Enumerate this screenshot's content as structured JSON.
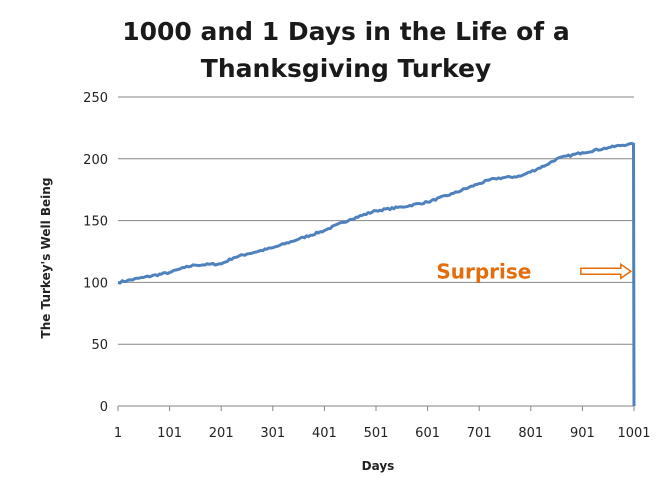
{
  "chart_data": {
    "type": "line",
    "title": [
      "1000 and 1 Days in the Life of a",
      "Thanksgiving Turkey"
    ],
    "xlabel": "Days",
    "ylabel": "The Turkey's Well Being",
    "xlim": [
      1,
      1001
    ],
    "ylim": [
      0,
      250
    ],
    "x_ticks": [
      1,
      101,
      201,
      301,
      401,
      501,
      601,
      701,
      801,
      901,
      1001
    ],
    "y_ticks": [
      0,
      50,
      100,
      150,
      200,
      250
    ],
    "grid": true,
    "legend": "none",
    "series": [
      {
        "color": "#4f81bd",
        "points": [
          [
            1,
            100
          ],
          [
            50,
            104
          ],
          [
            101,
            108
          ],
          [
            130,
            112
          ],
          [
            150,
            114
          ],
          [
            201,
            115
          ],
          [
            225,
            120
          ],
          [
            251,
            123
          ],
          [
            301,
            128
          ],
          [
            351,
            135
          ],
          [
            401,
            142
          ],
          [
            451,
            151
          ],
          [
            501,
            158
          ],
          [
            551,
            161
          ],
          [
            601,
            165
          ],
          [
            651,
            172
          ],
          [
            701,
            180
          ],
          [
            731,
            184
          ],
          [
            781,
            186
          ],
          [
            831,
            195
          ],
          [
            851,
            200
          ],
          [
            901,
            205
          ],
          [
            951,
            209
          ],
          [
            991,
            212
          ],
          [
            1000,
            212
          ],
          [
            1001,
            0
          ]
        ]
      }
    ],
    "annotations": [
      {
        "text": "Surprise",
        "x": 710,
        "y": 109,
        "color": "#e46c0a"
      }
    ]
  }
}
